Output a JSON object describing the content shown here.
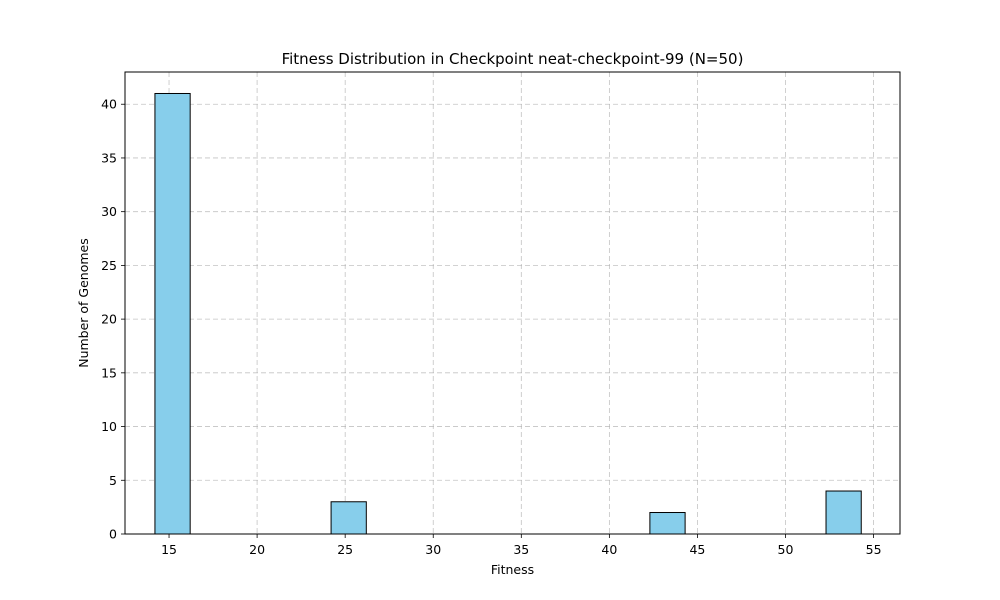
{
  "chart_data": {
    "type": "bar",
    "title": "Fitness Distribution in Checkpoint neat-checkpoint-99 (N=50)",
    "xlabel": "Fitness",
    "ylabel": "Number of Genomes",
    "xlim": [
      12.5,
      56.5
    ],
    "ylim": [
      0,
      43
    ],
    "x_ticks": [
      15,
      20,
      25,
      30,
      35,
      40,
      45,
      50,
      55
    ],
    "y_ticks": [
      0,
      5,
      10,
      15,
      20,
      25,
      30,
      35,
      40
    ],
    "bin_width": 2.0,
    "bars": [
      {
        "x_start": 14.2,
        "x_end": 16.2,
        "value": 41
      },
      {
        "x_start": 24.2,
        "x_end": 26.2,
        "value": 3
      },
      {
        "x_start": 42.3,
        "x_end": 44.3,
        "value": 2
      },
      {
        "x_start": 52.3,
        "x_end": 54.3,
        "value": 4
      }
    ],
    "grid": true,
    "grid_style": "dashed",
    "bar_color": "#87ceeb",
    "bar_edge_color": "#000000"
  }
}
